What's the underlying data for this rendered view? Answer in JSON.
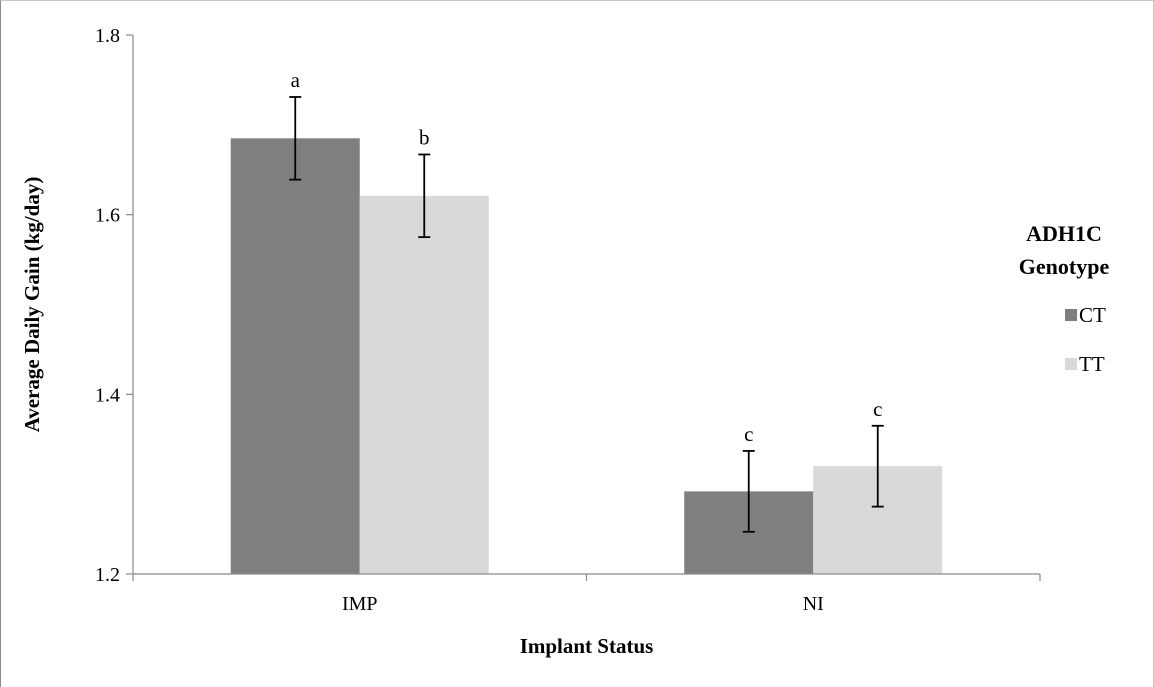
{
  "chart_data": {
    "type": "bar",
    "categories": [
      "IMP",
      "NI"
    ],
    "series": [
      {
        "name": "CT",
        "color": "#7f7f7f",
        "values": [
          1.685,
          1.292
        ],
        "errors": [
          0.046,
          0.045
        ],
        "letters": [
          "a",
          "c"
        ]
      },
      {
        "name": "TT",
        "color": "#d9d9d9",
        "values": [
          1.621,
          1.32
        ],
        "errors": [
          0.046,
          0.045
        ],
        "letters": [
          "b",
          "c"
        ]
      }
    ],
    "xlabel": "Implant Status",
    "ylabel": "Average Daily Gain (kg/day)",
    "ylim": [
      1.2,
      1.8
    ],
    "yticks": [
      "1.2",
      "1.4",
      "1.6",
      "1.8"
    ],
    "grid": false,
    "legend": {
      "title_lines": [
        "ADH1C",
        "Genotype"
      ],
      "placement": "right"
    }
  }
}
